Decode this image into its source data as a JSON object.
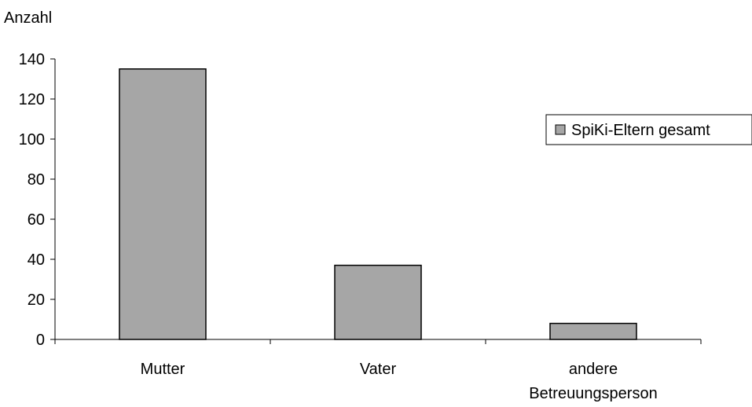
{
  "chart_data": {
    "type": "bar",
    "ylabel": "Anzahl",
    "xlabel": "",
    "categories": [
      "Mutter",
      "Vater",
      "andere Betreuungsperson"
    ],
    "category_lines": [
      [
        "Mutter"
      ],
      [
        "Vater"
      ],
      [
        "andere",
        "Betreuungsperson"
      ]
    ],
    "series": [
      {
        "name": "SpiKi-Eltern gesamt",
        "values": [
          135,
          37,
          8
        ]
      }
    ],
    "ylim": [
      0,
      140
    ],
    "yticks": [
      0,
      20,
      40,
      60,
      80,
      100,
      120,
      140
    ],
    "grid": false,
    "legend_position": "right",
    "colors": {
      "bar_fill": "#a6a6a6",
      "bar_stroke": "#000000",
      "axis": "#000000"
    }
  }
}
